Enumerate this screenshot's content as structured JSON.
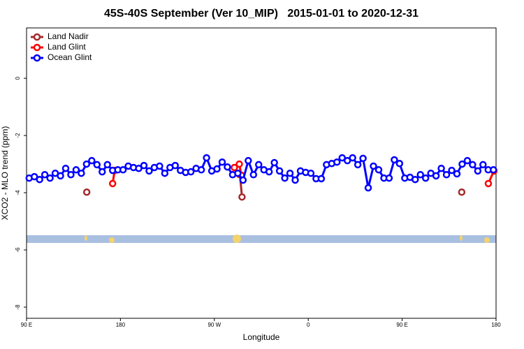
{
  "chart_data": {
    "type": "line",
    "title": "45S-40S September (Ver 10_MIP)   2015-01-01 to 2020-12-31",
    "x_label": "Longitude",
    "y_label": "XCO2 - MLO trend (ppm)",
    "xlim": [
      90,
      540
    ],
    "xticks": [
      {
        "value": 90,
        "label": "90 E"
      },
      180,
      {
        "value": 270,
        "label": "90 W"
      },
      {
        "value": 360,
        "label": "0"
      },
      {
        "value": 450,
        "label": "90 E"
      },
      {
        "value": 540,
        "label": "180"
      }
    ],
    "ylim": [
      -8.39,
      1.76
    ],
    "yticks": [
      -8,
      -6,
      -4,
      -2,
      0
    ],
    "legend": "top-left",
    "series": [
      {
        "name": "Land Nadir",
        "color": "#a52a2a",
        "x": [
          147.7,
          null,
          294.5,
          296.5,
          null,
          507.1
        ],
        "values": [
          -3.98,
          null,
          -3.37,
          -4.15,
          null,
          -3.98
        ]
      },
      {
        "name": "Land Glint",
        "color": "#ff0000",
        "x": [
          172.5,
          174.5,
          null,
          289.2,
          293.9,
          295.9,
          null,
          532.6,
          537.9
        ],
        "values": [
          -3.68,
          -3.22,
          null,
          -3.12,
          -3.0,
          -3.39,
          null,
          -3.68,
          -3.24
        ]
      },
      {
        "name": "Ocean Glint",
        "color": "#0000ff",
        "x": [
          92.5,
          97.5,
          102.5,
          107.5,
          112.5,
          117.5,
          122.5,
          127.5,
          132.5,
          137.5,
          142.5,
          147.5,
          152.5,
          157.5,
          162.5,
          167.5,
          172.5,
          177.5,
          182.5,
          187.5,
          192.5,
          197.5,
          202.5,
          207.5,
          212.5,
          217.5,
          222.5,
          227.5,
          232.5,
          237.5,
          242.5,
          247.5,
          252.5,
          257.5,
          262.5,
          267.5,
          272.5,
          277.5,
          282.5,
          287.5,
          292.5,
          297.5,
          302.5,
          307.5,
          312.5,
          317.5,
          322.5,
          327.5,
          332.5,
          337.5,
          342.5,
          347.5,
          352.5,
          357.5,
          362.5,
          367.5,
          372.5,
          377.5,
          382.5,
          387.5,
          392.5,
          397.5,
          402.5,
          407.5,
          412.5,
          417.5,
          422.5,
          427.5,
          432.5,
          437.5,
          442.5,
          447.5,
          452.5,
          457.5,
          462.5,
          467.5,
          472.5,
          477.5,
          482.5,
          487.5,
          492.5,
          497.5,
          502.5,
          507.5,
          512.5,
          517.5,
          522.5,
          527.5,
          532.5,
          537.5
        ],
        "values": [
          -3.49,
          -3.44,
          -3.54,
          -3.37,
          -3.49,
          -3.32,
          -3.41,
          -3.15,
          -3.37,
          -3.2,
          -3.32,
          -3.0,
          -2.88,
          -3.02,
          -3.27,
          -3.02,
          -3.22,
          -3.2,
          -3.2,
          -3.07,
          -3.12,
          -3.15,
          -3.05,
          -3.24,
          -3.12,
          -3.07,
          -3.32,
          -3.12,
          -3.05,
          -3.22,
          -3.29,
          -3.27,
          -3.15,
          -3.2,
          -2.78,
          -3.24,
          -3.17,
          -2.93,
          -3.1,
          -3.37,
          -3.32,
          -3.56,
          -2.88,
          -3.37,
          -3.02,
          -3.2,
          -3.27,
          -2.95,
          -3.24,
          -3.49,
          -3.32,
          -3.56,
          -3.24,
          -3.29,
          -3.32,
          -3.51,
          -3.51,
          -3.02,
          -2.98,
          -2.93,
          -2.78,
          -2.88,
          -2.78,
          -3.02,
          -2.8,
          -3.83,
          -3.07,
          -3.2,
          -3.49,
          -3.49,
          -2.85,
          -2.98,
          -3.49,
          -3.46,
          -3.54,
          -3.37,
          -3.49,
          -3.32,
          -3.41,
          -3.15,
          -3.37,
          -3.22,
          -3.34,
          -3.0,
          -2.88,
          -3.02,
          -3.24,
          -3.02,
          -3.2,
          -3.2
        ]
      }
    ]
  }
}
